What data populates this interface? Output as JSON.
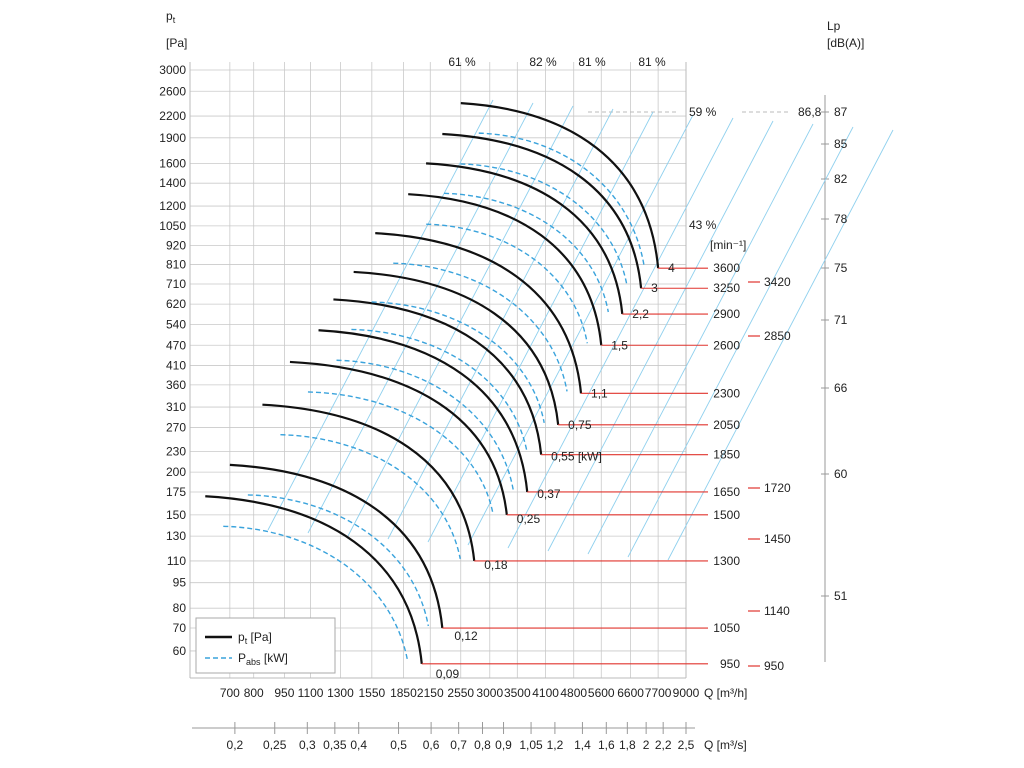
{
  "chart_data": {
    "type": "line",
    "ylabel_left": "p",
    "ylabel_left_sub": "t",
    "ylabel_left_unit": "[Pa]",
    "ylabel_right": "Lp",
    "ylabel_right_unit": "[dB(A)]",
    "xlabel_top_axis": "Q [m³/h]",
    "xlabel_bottom_axis": "Q [m³/s]",
    "x_ticks_m3h": [
      "700",
      "800",
      "950",
      "1100",
      "1300",
      "1550",
      "1850",
      "2150",
      "2550",
      "3000",
      "3500",
      "4100",
      "4800",
      "5600",
      "6600",
      "7700",
      "9000"
    ],
    "x_ticks_m3s": [
      "0,2",
      "0,25",
      "0,3",
      "0,35",
      "0,4",
      "0,5",
      "0,6",
      "0,7",
      "0,8",
      "0,9",
      "1,05",
      "1,2",
      "1,4",
      "1,6",
      "1,8",
      "2",
      "2,2",
      "2,5"
    ],
    "y_ticks": [
      "60",
      "70",
      "80",
      "95",
      "110",
      "130",
      "150",
      "175",
      "200",
      "230",
      "270",
      "310",
      "360",
      "410",
      "470",
      "540",
      "620",
      "710",
      "810",
      "920",
      "1050",
      "1200",
      "1400",
      "1600",
      "1900",
      "2200",
      "2600",
      "3000"
    ],
    "efficiency_labels": [
      "61 %",
      "82 %",
      "81 %",
      "81 %",
      "59 %",
      "43 %"
    ],
    "power_labels": [
      "4",
      "3",
      "2,2",
      "1,5",
      "1,1",
      "0,75",
      "0,55 [kW]",
      "0,37",
      "0,25",
      "0,18",
      "0,12",
      "0,09"
    ],
    "speed_unit_label": "[min⁻¹]",
    "speed_ticks": [
      "3600",
      "3250",
      "2900",
      "2600",
      "2300",
      "2050",
      "1850",
      "1650",
      "1500",
      "1300",
      "1050",
      "950"
    ],
    "speed_ticks_right": [
      "3420",
      "2850",
      "1720",
      "1450",
      "1140",
      "950"
    ],
    "lp_ticks": [
      "87",
      "85",
      "82",
      "78",
      "75",
      "71",
      "66",
      "60",
      "51"
    ],
    "lp_marker": "86,8",
    "series": [
      {
        "name": "p",
        "sub": "t",
        "unit": " [Pa]",
        "style": "solid",
        "color": "#111111"
      },
      {
        "name": "P",
        "sub": "abs",
        "unit": " [kW]",
        "style": "dashed",
        "color": "#3aa3dc"
      }
    ],
    "curves": [
      {
        "speed": 950,
        "x0": 610,
        "y0": 170,
        "x1": 2050,
        "y1": 55
      },
      {
        "speed": 1050,
        "x0": 700,
        "y0": 210,
        "x1": 2300,
        "y1": 70
      },
      {
        "speed": 1300,
        "x0": 840,
        "y0": 315,
        "x1": 2750,
        "y1": 110
      },
      {
        "speed": 1500,
        "x0": 980,
        "y0": 420,
        "x1": 3300,
        "y1": 150
      },
      {
        "speed": 1650,
        "x0": 1150,
        "y0": 520,
        "x1": 3700,
        "y1": 175
      },
      {
        "speed": 1850,
        "x0": 1250,
        "y0": 640,
        "x1": 4000,
        "y1": 225
      },
      {
        "speed": 2050,
        "x0": 1400,
        "y0": 770,
        "x1": 4400,
        "y1": 275
      },
      {
        "speed": 2300,
        "x0": 1580,
        "y0": 1000,
        "x1": 5000,
        "y1": 340
      },
      {
        "speed": 2600,
        "x0": 1900,
        "y0": 1300,
        "x1": 5600,
        "y1": 470
      },
      {
        "speed": 2900,
        "x0": 2100,
        "y0": 1600,
        "x1": 6300,
        "y1": 580
      },
      {
        "speed": 3250,
        "x0": 2300,
        "y0": 1950,
        "x1": 7000,
        "y1": 690
      },
      {
        "speed": 3600,
        "x0": 2550,
        "y0": 2400,
        "x1": 7700,
        "y1": 790
      }
    ]
  }
}
